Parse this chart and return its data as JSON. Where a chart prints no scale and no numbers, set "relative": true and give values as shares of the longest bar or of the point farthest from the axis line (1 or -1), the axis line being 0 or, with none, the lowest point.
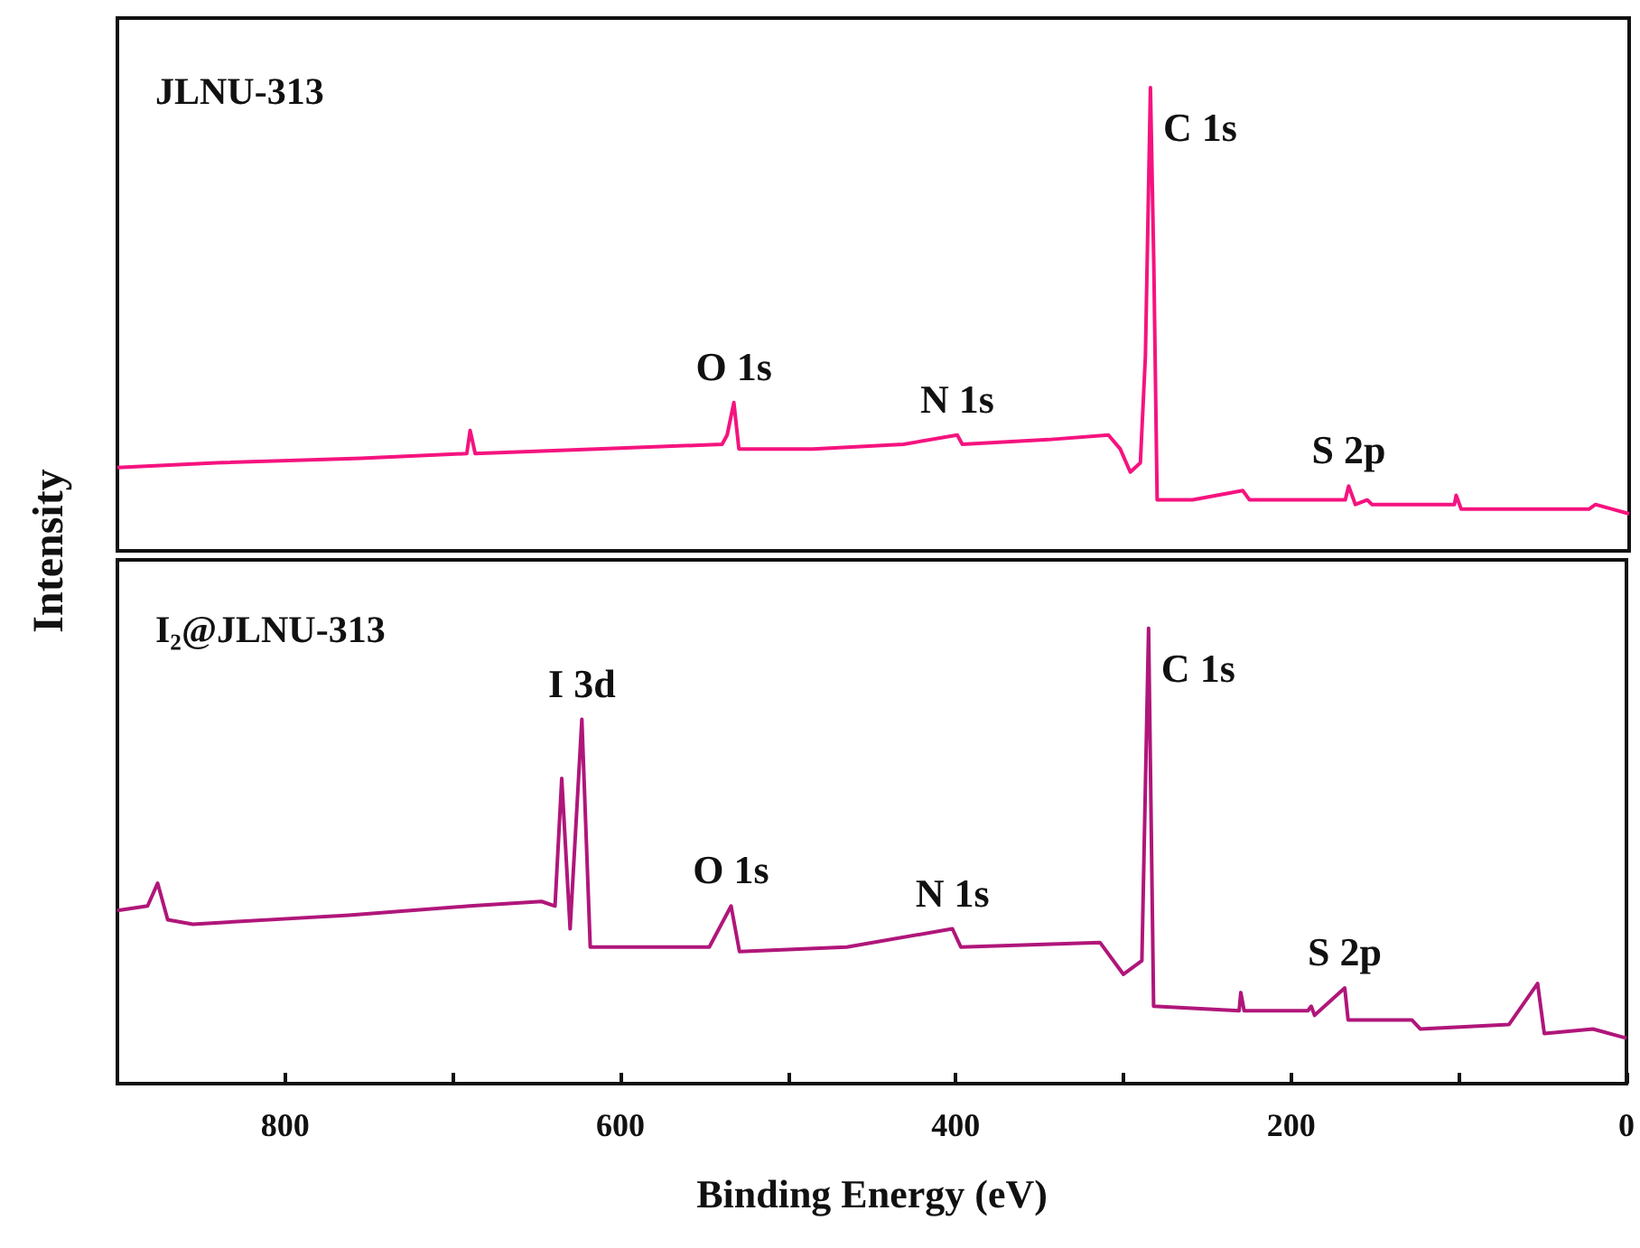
{
  "chart_data": [
    {
      "type": "line",
      "title": "JLNU-313",
      "relative": true,
      "xlim": [
        900,
        0
      ],
      "tick_labels": false,
      "series": [
        {
          "color": "#f5137f",
          "x": [
            900,
            841,
            755,
            692,
            690,
            687,
            615,
            540,
            537,
            533,
            530,
            486,
            432,
            400,
            397,
            346,
            310,
            303,
            297,
            291,
            288,
            285,
            283,
            281,
            260,
            230,
            226,
            169,
            167,
            163,
            156,
            153,
            104,
            103,
            100,
            24,
            20,
            0
          ],
          "values": [
            0.18,
            0.19,
            0.2,
            0.21,
            0.26,
            0.21,
            0.22,
            0.23,
            0.25,
            0.32,
            0.22,
            0.22,
            0.23,
            0.25,
            0.23,
            0.24,
            0.25,
            0.22,
            0.17,
            0.19,
            0.42,
            1.0,
            0.62,
            0.11,
            0.11,
            0.13,
            0.11,
            0.11,
            0.14,
            0.1,
            0.11,
            0.1,
            0.1,
            0.12,
            0.09,
            0.09,
            0.1,
            0.08
          ]
        }
      ],
      "annotations": [
        {
          "text": "O 1s",
          "x": 533,
          "y": 0.32
        },
        {
          "text": "N 1s",
          "x": 400,
          "y": 0.25
        },
        {
          "text": "C 1s",
          "x": 285,
          "y": 1.0
        },
        {
          "text": "S 2p",
          "x": 167,
          "y": 0.14
        }
      ]
    },
    {
      "type": "line",
      "title": "I₂@JLNU-313",
      "ylabel": "Intensity",
      "xlabel": "Binding Energy (eV)",
      "relative": true,
      "xlim": [
        900,
        0
      ],
      "xticks": [
        {
          "value": 900,
          "label": null
        },
        800,
        {
          "value": 700,
          "label": null
        },
        600,
        {
          "value": 500,
          "label": null
        },
        400,
        {
          "value": 300,
          "label": null
        },
        200,
        {
          "value": 100,
          "label": null
        },
        0
      ],
      "tick_labels": "x",
      "series": [
        {
          "color": "#b0167a",
          "x": [
            900,
            882,
            876,
            870,
            855,
            762,
            690,
            647,
            639,
            635,
            630,
            623,
            618,
            547,
            534,
            529,
            465,
            402,
            397,
            314,
            300,
            289,
            285,
            282,
            231,
            230,
            228,
            190,
            188,
            186,
            168,
            166,
            128,
            123,
            70,
            53,
            49,
            20,
            0
          ],
          "values": [
            0.38,
            0.39,
            0.44,
            0.36,
            0.35,
            0.37,
            0.39,
            0.4,
            0.39,
            0.67,
            0.34,
            0.8,
            0.3,
            0.3,
            0.39,
            0.29,
            0.3,
            0.34,
            0.3,
            0.31,
            0.24,
            0.27,
            1.0,
            0.17,
            0.16,
            0.2,
            0.16,
            0.16,
            0.17,
            0.15,
            0.21,
            0.14,
            0.14,
            0.12,
            0.13,
            0.22,
            0.11,
            0.12,
            0.1
          ]
        }
      ],
      "annotations": [
        {
          "text": "I 3d",
          "x": 623,
          "y": 0.8
        },
        {
          "text": "O 1s",
          "x": 534,
          "y": 0.39
        },
        {
          "text": "N 1s",
          "x": 402,
          "y": 0.34
        },
        {
          "text": "C 1s",
          "x": 285,
          "y": 1.0
        },
        {
          "text": "S 2p",
          "x": 168,
          "y": 0.21
        }
      ]
    }
  ]
}
